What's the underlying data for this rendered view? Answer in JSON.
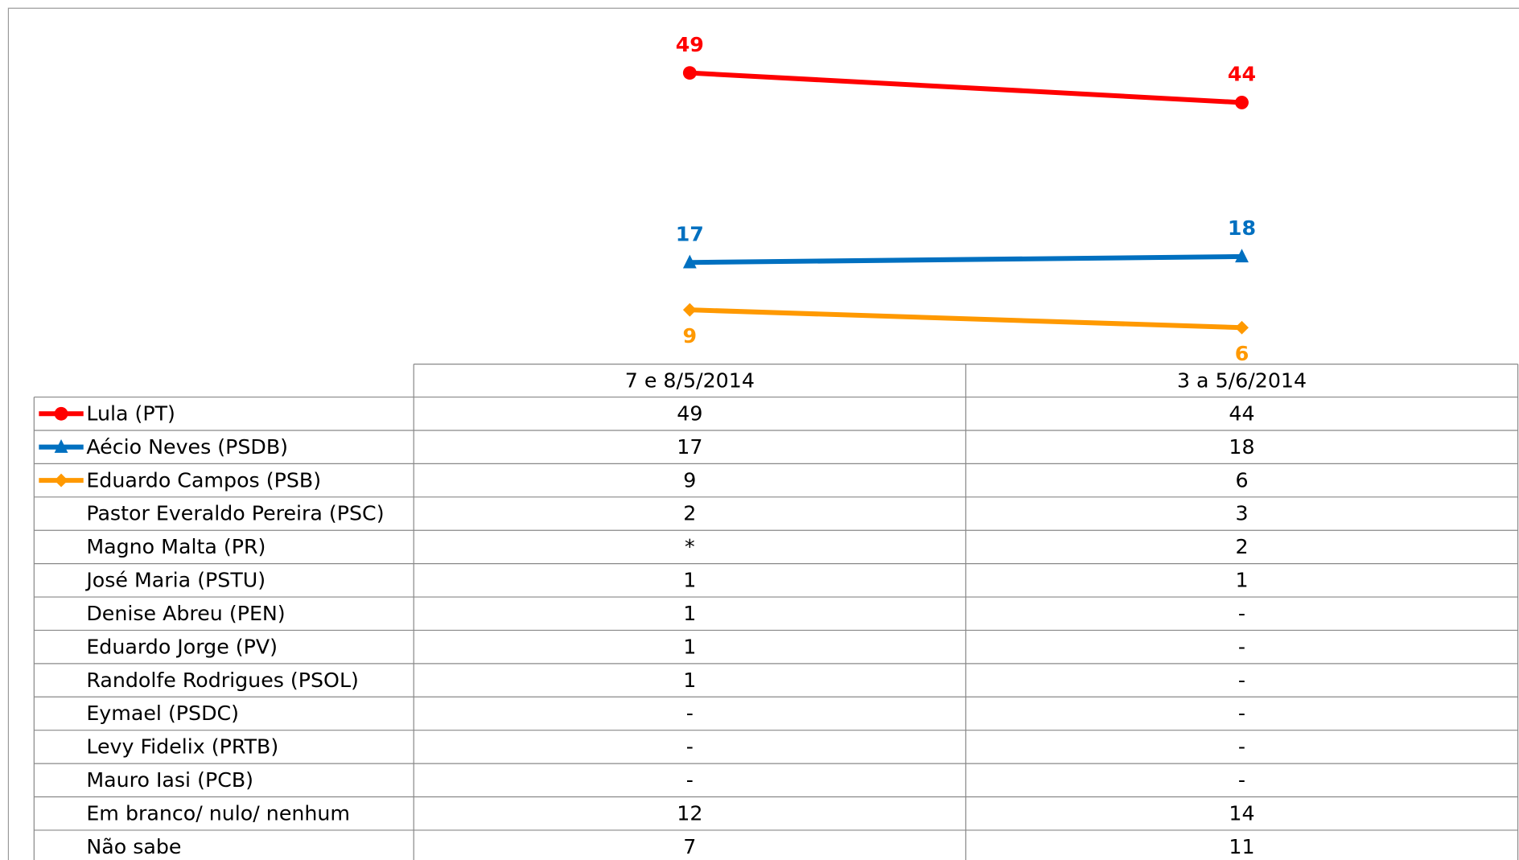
{
  "chart_data": {
    "type": "line",
    "categories": [
      "7 e 8/5/2014",
      "3 a 5/6/2014"
    ],
    "ylim": [
      0,
      60
    ],
    "series": [
      {
        "name": "Lula (PT)",
        "color": "#ff0000",
        "marker": "circle",
        "values": [
          49,
          44
        ]
      },
      {
        "name": "Aécio Neves (PSDB)",
        "color": "#0070c0",
        "marker": "triangle",
        "values": [
          17,
          18
        ]
      },
      {
        "name": "Eduardo Campos (PSB)",
        "color": "#ff9900",
        "marker": "diamond",
        "values": [
          9,
          6
        ]
      }
    ]
  },
  "table": {
    "rows": [
      {
        "name": "Pastor Everaldo Pereira (PSC)",
        "values": [
          2,
          3
        ]
      },
      {
        "name": "Magno Malta (PR)",
        "values": [
          "*",
          2
        ]
      },
      {
        "name": "José Maria (PSTU)",
        "values": [
          1,
          1
        ]
      },
      {
        "name": "Denise Abreu (PEN)",
        "values": [
          1,
          "-"
        ]
      },
      {
        "name": "Eduardo Jorge (PV)",
        "values": [
          1,
          "-"
        ]
      },
      {
        "name": "Randolfe Rodrigues (PSOL)",
        "values": [
          1,
          "-"
        ]
      },
      {
        "name": "Eymael (PSDC)",
        "values": [
          "-",
          "-"
        ]
      },
      {
        "name": "Levy Fidelix (PRTB)",
        "values": [
          "-",
          "-"
        ]
      },
      {
        "name": "Mauro Iasi (PCB)",
        "values": [
          "-",
          "-"
        ]
      },
      {
        "name": "Em branco/ nulo/ nenhum",
        "values": [
          12,
          14
        ]
      },
      {
        "name": "Não sabe",
        "values": [
          7,
          11
        ]
      }
    ]
  }
}
